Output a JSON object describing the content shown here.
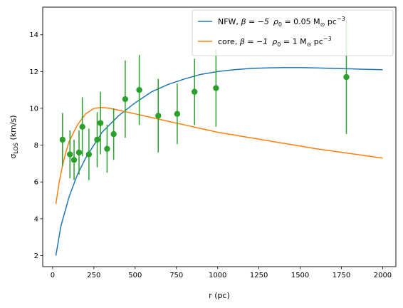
{
  "chart_data": {
    "type": "line",
    "xlabel": "r (pc)",
    "ylabel_main": "σ",
    "ylabel_sub": "LOS",
    "ylabel_unit": " (km/s)",
    "xlim": [
      -60,
      2080
    ],
    "ylim": [
      1.4,
      15.5
    ],
    "xticks": [
      0,
      250,
      500,
      750,
      1000,
      1250,
      1500,
      1750,
      2000
    ],
    "yticks": [
      2,
      4,
      6,
      8,
      10,
      12,
      14
    ],
    "legend_position": "top-right",
    "series": [
      {
        "name": "NFW, β = −5,  ρ0 = 0.05 M⊙ pc⁻³",
        "legend": {
          "a": "NFW, ",
          "beta": "β = −5",
          "rho": "ρ",
          "rho_sub": "0",
          "rho_val": " = 0.05 M",
          "sun_sub": "⊙",
          "pc": " pc",
          "exp": "−3"
        },
        "color": "#1f77b4",
        "x": [
          20,
          50,
          100,
          150,
          200,
          300,
          400,
          500,
          600,
          700,
          800,
          900,
          1000,
          1100,
          1200,
          1300,
          1400,
          1500,
          1600,
          1700,
          1800,
          1900,
          2000
        ],
        "y": [
          2.0,
          3.6,
          5.2,
          6.4,
          7.3,
          8.7,
          9.6,
          10.3,
          10.9,
          11.3,
          11.6,
          11.85,
          12.0,
          12.1,
          12.17,
          12.2,
          12.22,
          12.22,
          12.2,
          12.17,
          12.15,
          12.12,
          12.1
        ]
      },
      {
        "name": "core, β = −1,  ρ0 = 1 M⊙ pc⁻³",
        "legend": {
          "a": "core, ",
          "beta": "β = −1",
          "rho": "ρ",
          "rho_sub": "0",
          "rho_val": " = 1 M",
          "sun_sub": "⊙",
          "pc": " pc",
          "exp": "−3"
        },
        "color": "#ff7f0e",
        "x": [
          20,
          40,
          60,
          80,
          100,
          150,
          200,
          250,
          300,
          350,
          400,
          500,
          600,
          700,
          800,
          900,
          1000,
          1200,
          1400,
          1600,
          1800,
          2000
        ],
        "y": [
          4.8,
          6.0,
          6.9,
          7.6,
          8.2,
          9.1,
          9.7,
          10.0,
          10.05,
          10.0,
          9.9,
          9.7,
          9.5,
          9.3,
          9.1,
          8.9,
          8.7,
          8.4,
          8.1,
          7.8,
          7.55,
          7.3
        ]
      }
    ],
    "points": {
      "color": "#2ca02c",
      "x": [
        60,
        105,
        130,
        160,
        180,
        220,
        270,
        290,
        330,
        370,
        440,
        525,
        640,
        755,
        860,
        990,
        1780
      ],
      "y": [
        8.3,
        7.5,
        7.2,
        7.6,
        9.0,
        7.5,
        8.3,
        9.2,
        7.8,
        8.6,
        10.5,
        11.0,
        9.6,
        9.7,
        10.9,
        11.1,
        11.7
      ],
      "err": [
        1.45,
        1.3,
        1.1,
        1.2,
        1.6,
        1.4,
        1.5,
        1.7,
        1.3,
        1.4,
        2.1,
        1.9,
        2.0,
        1.65,
        1.8,
        2.1,
        3.1
      ]
    }
  }
}
